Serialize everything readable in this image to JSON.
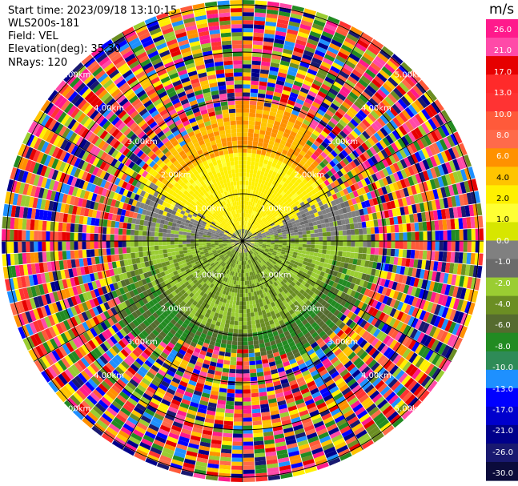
{
  "header": {
    "start_time_label": "Start time:",
    "start_time_value": "2023/09/18 13:10:15",
    "instrument": "WLS200s-181",
    "field_label": "Field:",
    "field_value": "VEL",
    "elevation_label": "Elevation(deg):",
    "elevation_value": "35.30",
    "nrays_label": "NRays:",
    "nrays_value": "120"
  },
  "range_labels": [
    "1.00km",
    "2.00km",
    "3.00km",
    "4.00km",
    "5.00km"
  ],
  "colorbar": {
    "unit": "m/s",
    "ticks": [
      "26.0",
      "21.0",
      "17.0",
      "13.0",
      "10.0",
      "8.0",
      "6.0",
      "4.0",
      "2.0",
      "1.0",
      "0.0",
      "-1.0",
      "-2.0",
      "-4.0",
      "-6.0",
      "-8.0",
      "-10.0",
      "-13.0",
      "-17.0",
      "-21.0",
      "-26.0",
      "-30.0"
    ],
    "colors": [
      "#ff1a8c",
      "#ff4aa8",
      "#e60000",
      "#ff2a2a",
      "#ff3333",
      "#ff5a3a",
      "#ff6a4a",
      "#ff9100",
      "#ffc400",
      "#fff000",
      "#ffff33",
      "#d7e600",
      "#808080",
      "#6b6b6b",
      "#9acd32",
      "#6b8e23",
      "#556b2f",
      "#228b22",
      "#2e8b57",
      "#1e90ff",
      "#0000ff",
      "#0000cd",
      "#00008b",
      "#191970",
      "#0b0b3b"
    ]
  }
}
